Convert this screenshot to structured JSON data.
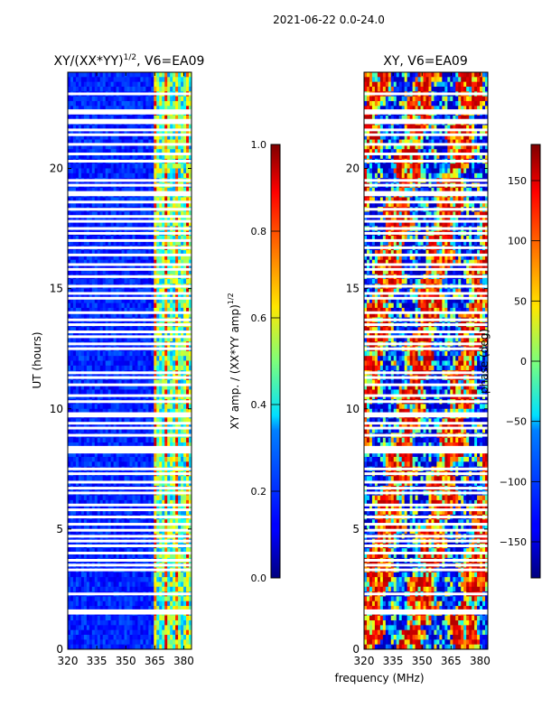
{
  "figure": {
    "suptitle": "2021-06-22 0.0-24.0",
    "xlabel": "frequency (MHz)"
  },
  "chart_data": [
    {
      "type": "heatmap",
      "title_prefix": "XY/(XX*YY)",
      "title_exponent": "1/2",
      "title_suffix": ", V6=EA09",
      "xlabel": "",
      "ylabel": "UT (hours)",
      "x_ticks": [
        "320",
        "335",
        "350",
        "365",
        "380"
      ],
      "x_tick_values": [
        320,
        335,
        350,
        365,
        380
      ],
      "xlim": [
        320,
        384
      ],
      "y_ticks": [
        "0",
        "5",
        "10",
        "15",
        "20"
      ],
      "y_tick_values": [
        0,
        5,
        10,
        15,
        20
      ],
      "ylim": [
        0,
        24
      ],
      "colormap": "jet",
      "colorbar": {
        "label_prefix": "XY amp. / (XX*YY amp)",
        "label_exponent": "1/2",
        "ticks": [
          "0.0",
          "0.2",
          "0.4",
          "0.6",
          "0.8",
          "1.0"
        ],
        "tick_values": [
          0.0,
          0.2,
          0.4,
          0.6,
          0.8,
          1.0
        ],
        "range": [
          0.0,
          1.0
        ]
      },
      "bright_band_MHz": [
        364,
        384
      ],
      "typical_amplitude_low": 0.1,
      "typical_amplitude_band": 0.45
    },
    {
      "type": "heatmap",
      "title": "XY, V6=EA09",
      "xlabel": "",
      "ylabel": "",
      "x_ticks": [
        "320",
        "335",
        "350",
        "365",
        "380"
      ],
      "x_tick_values": [
        320,
        335,
        350,
        365,
        380
      ],
      "xlim": [
        320,
        384
      ],
      "y_ticks": [
        "0",
        "5",
        "10",
        "15",
        "20"
      ],
      "y_tick_values": [
        0,
        5,
        10,
        15,
        20
      ],
      "ylim": [
        0,
        24
      ],
      "colormap": "jet",
      "colorbar": {
        "label": "phase (deg)",
        "ticks": [
          "−150",
          "−100",
          "−50",
          "0",
          "50",
          "100",
          "150"
        ],
        "tick_values": [
          -150,
          -100,
          -50,
          0,
          50,
          100,
          150
        ],
        "range": [
          -180,
          180
        ]
      }
    }
  ],
  "flagged_ut_hours": [
    1.5,
    1.6,
    2.3,
    3.3,
    3.5,
    3.7,
    4.0,
    4.3,
    4.5,
    4.7,
    4.95,
    5.2,
    5.5,
    5.8,
    6.0,
    6.5,
    6.7,
    6.95,
    7.3,
    7.5,
    8.2,
    8.3,
    8.4,
    8.9,
    9.2,
    9.4,
    9.7,
    9.8,
    10.3,
    10.55,
    11.0,
    11.3,
    11.5,
    12.5,
    12.7,
    13.0,
    13.2,
    13.5,
    13.7,
    14.0,
    14.6,
    14.8,
    15.1,
    15.5,
    15.8,
    16.0,
    16.4,
    16.7,
    17.0,
    17.3,
    17.5,
    17.8,
    18.0,
    18.3,
    18.6,
    18.9,
    19.0,
    19.3,
    19.5,
    20.3,
    20.6,
    21.0,
    21.4,
    21.6,
    21.9,
    22.0,
    22.3,
    22.4,
    23.1
  ]
}
